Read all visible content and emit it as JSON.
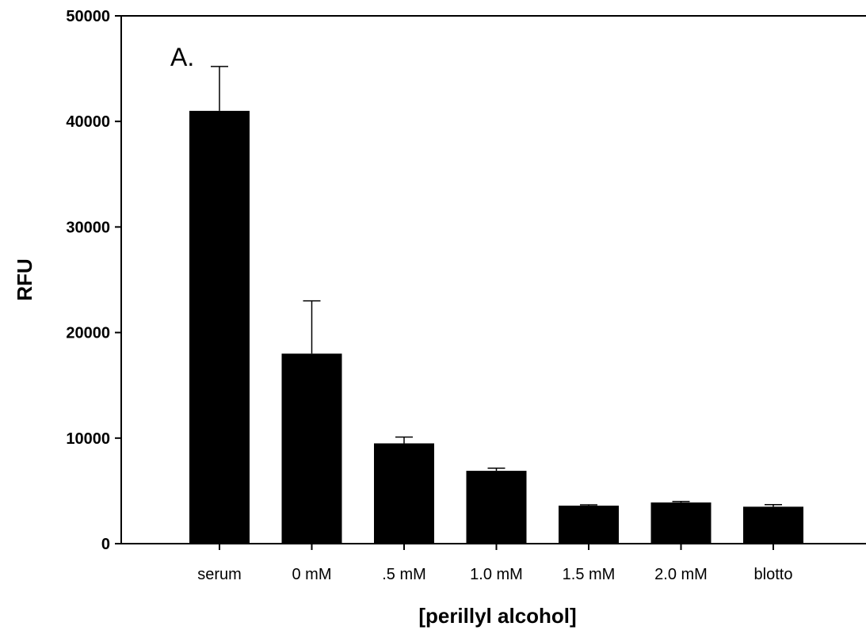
{
  "chart_data": {
    "type": "bar",
    "panel_label": "A.",
    "xlabel": "[perillyl alcohol]",
    "ylabel": "RFU",
    "ylim": [
      0,
      50000
    ],
    "yticks": [
      0,
      10000,
      20000,
      30000,
      40000,
      50000
    ],
    "ytick_labels": [
      "0",
      "10000",
      "20000",
      "30000",
      "40000",
      "50000"
    ],
    "categories": [
      "serum",
      "0 mM",
      ".5 mM",
      "1.0 mM",
      "1.5 mM",
      "2.0 mM",
      "blotto"
    ],
    "values": [
      41000,
      18000,
      9500,
      6900,
      3600,
      3900,
      3500
    ],
    "error_upper": [
      4200,
      5000,
      600,
      250,
      80,
      100,
      200
    ],
    "bar_color": "#000000",
    "grid": false,
    "legend": "none"
  }
}
